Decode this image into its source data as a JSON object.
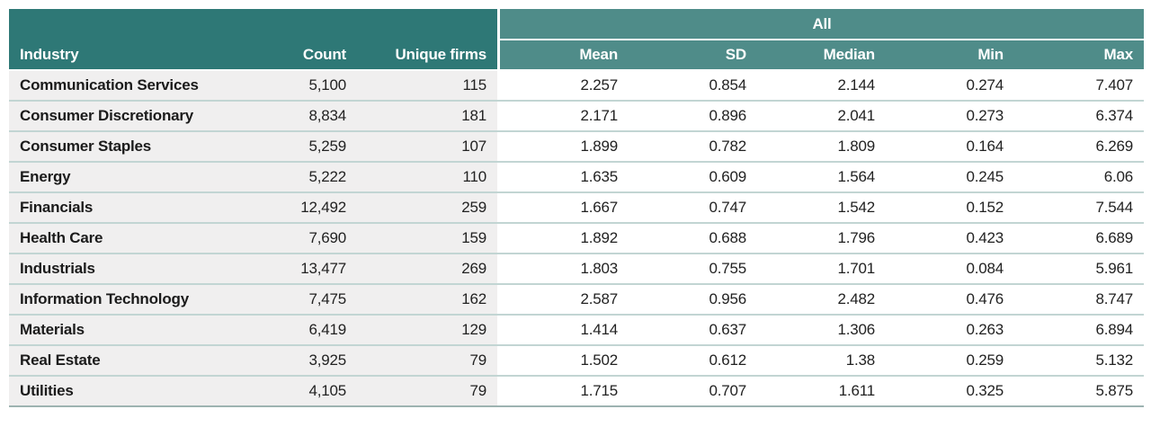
{
  "table": {
    "group_header": "All",
    "columns": [
      "Industry",
      "Count",
      "Unique firms",
      "Mean",
      "SD",
      "Median",
      "Min",
      "Max"
    ],
    "rows": [
      {
        "industry": "Communication Services",
        "count": "5,100",
        "unique_firms": "115",
        "mean": "2.257",
        "sd": "0.854",
        "median": "2.144",
        "min": "0.274",
        "max": "7.407"
      },
      {
        "industry": "Consumer Discretionary",
        "count": "8,834",
        "unique_firms": "181",
        "mean": "2.171",
        "sd": "0.896",
        "median": "2.041",
        "min": "0.273",
        "max": "6.374"
      },
      {
        "industry": "Consumer Staples",
        "count": "5,259",
        "unique_firms": "107",
        "mean": "1.899",
        "sd": "0.782",
        "median": "1.809",
        "min": "0.164",
        "max": "6.269"
      },
      {
        "industry": "Energy",
        "count": "5,222",
        "unique_firms": "110",
        "mean": "1.635",
        "sd": "0.609",
        "median": "1.564",
        "min": "0.245",
        "max": "6.06"
      },
      {
        "industry": "Financials",
        "count": "12,492",
        "unique_firms": "259",
        "mean": "1.667",
        "sd": "0.747",
        "median": "1.542",
        "min": "0.152",
        "max": "7.544"
      },
      {
        "industry": "Health Care",
        "count": "7,690",
        "unique_firms": "159",
        "mean": "1.892",
        "sd": "0.688",
        "median": "1.796",
        "min": "0.423",
        "max": "6.689"
      },
      {
        "industry": "Industrials",
        "count": "13,477",
        "unique_firms": "269",
        "mean": "1.803",
        "sd": "0.755",
        "median": "1.701",
        "min": "0.084",
        "max": "5.961"
      },
      {
        "industry": "Information Technology",
        "count": "7,475",
        "unique_firms": "162",
        "mean": "2.587",
        "sd": "0.956",
        "median": "2.482",
        "min": "0.476",
        "max": "8.747"
      },
      {
        "industry": "Materials",
        "count": "6,419",
        "unique_firms": "129",
        "mean": "1.414",
        "sd": "0.637",
        "median": "1.306",
        "min": "0.263",
        "max": "6.894"
      },
      {
        "industry": "Real Estate",
        "count": "3,925",
        "unique_firms": "79",
        "mean": "1.502",
        "sd": "0.612",
        "median": "1.38",
        "min": "0.259",
        "max": "5.132"
      },
      {
        "industry": "Utilities",
        "count": "4,105",
        "unique_firms": "79",
        "mean": "1.715",
        "sd": "0.707",
        "median": "1.611",
        "min": "0.325",
        "max": "5.875"
      }
    ],
    "colors": {
      "header_dark_teal": "#2e7876",
      "header_light_teal": "#4f8c89",
      "left_body_bg": "#f0efef",
      "row_divider": "#c2d5d3",
      "bottom_border": "#9db3b1",
      "text_dark": "#1b1b1b"
    }
  }
}
